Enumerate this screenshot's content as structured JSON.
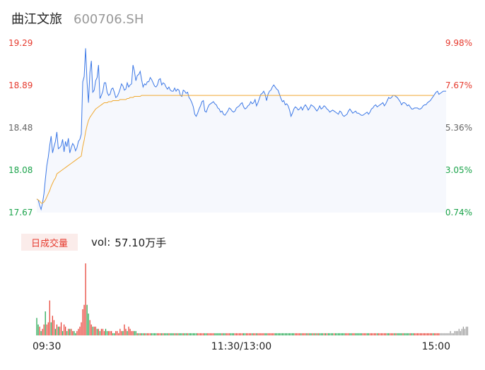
{
  "header": {
    "name": "曲江文旅",
    "code": "600706.SH"
  },
  "volume_panel": {
    "tag": "日成交量",
    "label": "vol:",
    "value": "57.10万手"
  },
  "colors": {
    "up": "#e63a2e",
    "down": "#1aa34a",
    "price_line": "#3c78e6",
    "avg_line": "#f0a930",
    "flat": "#999999"
  },
  "chart_data": {
    "type": "line",
    "y_left_ticks": [
      "19.29",
      "18.89",
      "18.48",
      "18.08",
      "17.67"
    ],
    "y_right_ticks": [
      "9.98%",
      "7.67%",
      "5.36%",
      "3.05%",
      "0.74%"
    ],
    "ylim": [
      17.67,
      19.29
    ],
    "x_ticks": [
      "09:30",
      "11:30/13:00",
      "15:00"
    ],
    "price": [
      17.8,
      17.79,
      17.74,
      17.7,
      17.76,
      17.85,
      17.99,
      18.12,
      18.2,
      18.31,
      18.4,
      18.24,
      18.3,
      18.35,
      18.44,
      18.28,
      18.29,
      18.31,
      18.37,
      18.25,
      18.35,
      18.3,
      18.38,
      18.24,
      18.29,
      18.33,
      18.31,
      18.26,
      18.29,
      18.35,
      18.37,
      18.42,
      18.92,
      18.97,
      19.24,
      18.92,
      18.72,
      19.01,
      19.12,
      18.82,
      18.84,
      18.93,
      18.96,
      19.08,
      18.76,
      18.79,
      18.83,
      18.91,
      18.91,
      18.82,
      18.79,
      18.8,
      18.85,
      18.86,
      18.82,
      18.77,
      18.78,
      18.81,
      18.85,
      18.9,
      18.88,
      18.84,
      18.85,
      18.91,
      18.87,
      18.89,
      18.9,
      19.08,
      19.02,
      18.93,
      18.98,
      18.99,
      19.02,
      18.94,
      18.87,
      18.9,
      18.89,
      18.92,
      18.92,
      18.96,
      18.94,
      18.91,
      18.88,
      18.87,
      18.89,
      18.94,
      18.95,
      18.89,
      18.91,
      18.9,
      18.87,
      18.85,
      18.87,
      18.84,
      18.83,
      18.83,
      18.86,
      18.83,
      18.85,
      18.84,
      18.79,
      18.78,
      18.84,
      18.83,
      18.81,
      18.82,
      18.77,
      18.75,
      18.72,
      18.68,
      18.61,
      18.59,
      18.62,
      18.66,
      18.69,
      18.73,
      18.74,
      18.64,
      18.63,
      18.67,
      18.7,
      18.71,
      18.72,
      18.73,
      18.71,
      18.7,
      18.67,
      18.66,
      18.63,
      18.64,
      18.61,
      18.6,
      18.62,
      18.64,
      18.67,
      18.66,
      18.64,
      18.63,
      18.64,
      18.67,
      18.68,
      18.69,
      18.71,
      18.72,
      18.68,
      18.66,
      18.67,
      18.69,
      18.7,
      18.73,
      18.71,
      18.72,
      18.75,
      18.69,
      18.72,
      18.76,
      18.8,
      18.81,
      18.83,
      18.8,
      18.74,
      18.8,
      18.83,
      18.84,
      18.87,
      18.89,
      18.87,
      18.85,
      18.84,
      18.8,
      18.76,
      18.73,
      18.74,
      18.7,
      18.71,
      18.69,
      18.65,
      18.59,
      18.62,
      18.66,
      18.68,
      18.67,
      18.65,
      18.66,
      18.68,
      18.65,
      18.68,
      18.7,
      18.68,
      18.65,
      18.67,
      18.7,
      18.69,
      18.68,
      18.66,
      18.64,
      18.66,
      18.69,
      18.66,
      18.67,
      18.69,
      18.68,
      18.66,
      18.65,
      18.63,
      18.64,
      18.65,
      18.64,
      18.63,
      18.62,
      18.61,
      18.64,
      18.63,
      18.6,
      18.59,
      18.6,
      18.61,
      18.64,
      18.66,
      18.64,
      18.62,
      18.63,
      18.64,
      18.62,
      18.62,
      18.61,
      18.6,
      18.6,
      18.61,
      18.62,
      18.63,
      18.61,
      18.63,
      18.66,
      18.67,
      18.69,
      18.7,
      18.68,
      18.69,
      18.7,
      18.71,
      18.72,
      18.69,
      18.71,
      18.74,
      18.77,
      18.76,
      18.77,
      18.79,
      18.79,
      18.78,
      18.77,
      18.75,
      18.73,
      18.7,
      18.72,
      18.72,
      18.71,
      18.69,
      18.7,
      18.68,
      18.66,
      18.66,
      18.67,
      18.67,
      18.67,
      18.66,
      18.66,
      18.67,
      18.69,
      18.7,
      18.7,
      18.72,
      18.73,
      18.74,
      18.76,
      18.78,
      18.8,
      18.82,
      18.83,
      18.8,
      18.81,
      18.82,
      18.83,
      18.83,
      18.83
    ],
    "avg": [
      17.8,
      17.79,
      17.78,
      17.76,
      17.76,
      17.77,
      17.79,
      17.82,
      17.85,
      17.88,
      17.92,
      17.95,
      17.98,
      18.0,
      18.04,
      18.05,
      18.06,
      18.07,
      18.08,
      18.09,
      18.1,
      18.11,
      18.12,
      18.13,
      18.14,
      18.15,
      18.16,
      18.17,
      18.18,
      18.19,
      18.2,
      18.21,
      18.3,
      18.36,
      18.44,
      18.5,
      18.55,
      18.58,
      18.6,
      18.62,
      18.64,
      18.66,
      18.67,
      18.68,
      18.69,
      18.7,
      18.71,
      18.72,
      18.72,
      18.72,
      18.73,
      18.73,
      18.73,
      18.74,
      18.74,
      18.74,
      18.74,
      18.74,
      18.75,
      18.75,
      18.75,
      18.75,
      18.75,
      18.76,
      18.76,
      18.77,
      18.77,
      18.77,
      18.78,
      18.78,
      18.78,
      18.78,
      18.78,
      18.79,
      18.79,
      18.79,
      18.79,
      18.79,
      18.79,
      18.79,
      18.79,
      18.79,
      18.79,
      18.79,
      18.79,
      18.79,
      18.79,
      18.79,
      18.79,
      18.79,
      18.79,
      18.79,
      18.79,
      18.79,
      18.79,
      18.79,
      18.79,
      18.79,
      18.79,
      18.79,
      18.79,
      18.79,
      18.79,
      18.79,
      18.79,
      18.79,
      18.79,
      18.79,
      18.79,
      18.79,
      18.79,
      18.79,
      18.79,
      18.79,
      18.79,
      18.79,
      18.79,
      18.79,
      18.79,
      18.79,
      18.79,
      18.79,
      18.79,
      18.79,
      18.79,
      18.79,
      18.79,
      18.79,
      18.79,
      18.79,
      18.79,
      18.79,
      18.79,
      18.79,
      18.79,
      18.79,
      18.79,
      18.79,
      18.79,
      18.79,
      18.79,
      18.79,
      18.79,
      18.79,
      18.79,
      18.79,
      18.79,
      18.79,
      18.79,
      18.79,
      18.79,
      18.79,
      18.79,
      18.79,
      18.79,
      18.79,
      18.79,
      18.79,
      18.79,
      18.79,
      18.79,
      18.79,
      18.79,
      18.79,
      18.79,
      18.79,
      18.79,
      18.79,
      18.79,
      18.79,
      18.79,
      18.79,
      18.79,
      18.79,
      18.79,
      18.79,
      18.79,
      18.79,
      18.79,
      18.79,
      18.79,
      18.79,
      18.79,
      18.79,
      18.79,
      18.79,
      18.79,
      18.79,
      18.79,
      18.79,
      18.79,
      18.79,
      18.79,
      18.79,
      18.79,
      18.79,
      18.79,
      18.79,
      18.79,
      18.79,
      18.79,
      18.79,
      18.79,
      18.79,
      18.79,
      18.79,
      18.79,
      18.79,
      18.79,
      18.79,
      18.79,
      18.79,
      18.79,
      18.79,
      18.79,
      18.79,
      18.79,
      18.79,
      18.79,
      18.79,
      18.79,
      18.79,
      18.79,
      18.79,
      18.79,
      18.79,
      18.79,
      18.79,
      18.79,
      18.79,
      18.79,
      18.79,
      18.79,
      18.79,
      18.79,
      18.79,
      18.79,
      18.79,
      18.79,
      18.79,
      18.79,
      18.79,
      18.79,
      18.79,
      18.79,
      18.79,
      18.79,
      18.79,
      18.79,
      18.79,
      18.79,
      18.79,
      18.79,
      18.79,
      18.79,
      18.79,
      18.79,
      18.79,
      18.79,
      18.79,
      18.79,
      18.79,
      18.79,
      18.79,
      18.79,
      18.79,
      18.79,
      18.79,
      18.79,
      18.79,
      18.79,
      18.79,
      18.79,
      18.79,
      18.79,
      18.79,
      18.79
    ],
    "volume": [
      8,
      5,
      4,
      2,
      3,
      5,
      11,
      5,
      6,
      16,
      6,
      9,
      7,
      3,
      5,
      4,
      4,
      6,
      2,
      5,
      4,
      2,
      3,
      3,
      3,
      2,
      2,
      1,
      2,
      3,
      4,
      6,
      12,
      14,
      33,
      14,
      10,
      7,
      5,
      4,
      4,
      4,
      3,
      3,
      2,
      3,
      3,
      2,
      3,
      2,
      2,
      2,
      2,
      1,
      1,
      2,
      2,
      1,
      3,
      2,
      2,
      5,
      3,
      2,
      4,
      3,
      2,
      2,
      2,
      2,
      1,
      1,
      1,
      1,
      1,
      1,
      1,
      1,
      1,
      1,
      1,
      1,
      1,
      1,
      1,
      1,
      1,
      1,
      1,
      1,
      1,
      1,
      1,
      1,
      1,
      1,
      1,
      1,
      1,
      1,
      1,
      1,
      1,
      1,
      1,
      1,
      1,
      1,
      1,
      1,
      1,
      1,
      1,
      1,
      1,
      1,
      1,
      1,
      1,
      1,
      1,
      1,
      1,
      1,
      1,
      1,
      1,
      1,
      1,
      1,
      1,
      1,
      1,
      1,
      1,
      1,
      1,
      1,
      1,
      1,
      1,
      1,
      1,
      1,
      1,
      1,
      1,
      1,
      1,
      1,
      1,
      1,
      1,
      1,
      1,
      1,
      1,
      1,
      1,
      1,
      1,
      1,
      1,
      1,
      1,
      1,
      1,
      1,
      1,
      1,
      1,
      1,
      1,
      1,
      1,
      1,
      1,
      1,
      1,
      1,
      1,
      1,
      1,
      1,
      1,
      1,
      1,
      1,
      1,
      1,
      1,
      1,
      1,
      1,
      1,
      1,
      1,
      1,
      1,
      1,
      1,
      1,
      1,
      1,
      1,
      1,
      1,
      1,
      1,
      1,
      1,
      1,
      1,
      1,
      1,
      1,
      1,
      1,
      1,
      1,
      1,
      1,
      1,
      1,
      1,
      1,
      1,
      1,
      1,
      1,
      1,
      1,
      1,
      1,
      1,
      1,
      1,
      1,
      1,
      1,
      1,
      1,
      1,
      1,
      1,
      1,
      1,
      1,
      1,
      1,
      1,
      1,
      1,
      1,
      1,
      1,
      1,
      1,
      1,
      1,
      1,
      1,
      1,
      1,
      1,
      1,
      1,
      1,
      1,
      1,
      1,
      1,
      1,
      1,
      1,
      1,
      1,
      1,
      1,
      1,
      1,
      1,
      1,
      1,
      1,
      1,
      1,
      1,
      2,
      1,
      1,
      2,
      2,
      2,
      3,
      2,
      3,
      4,
      3,
      4,
      4
    ],
    "volume_dir": [
      "d",
      "d",
      "u",
      "d",
      "u",
      "u",
      "d",
      "u",
      "u",
      "u",
      "d",
      "u",
      "u",
      "d",
      "u",
      "d",
      "u",
      "u",
      "d",
      "u",
      "u",
      "d",
      "u",
      "d",
      "u",
      "u",
      "d",
      "d",
      "u",
      "u",
      "u",
      "u",
      "u",
      "u",
      "u",
      "d",
      "d",
      "u",
      "u",
      "d",
      "u",
      "u",
      "d",
      "u",
      "d",
      "u",
      "u",
      "u",
      "d",
      "d",
      "u",
      "u",
      "u",
      "d",
      "d",
      "u",
      "u",
      "u",
      "u",
      "u",
      "d",
      "u",
      "u",
      "d",
      "u",
      "u",
      "u",
      "u",
      "d",
      "d",
      "u",
      "d",
      "u",
      "d",
      "d",
      "u",
      "d",
      "u",
      "u",
      "u",
      "d",
      "d",
      "d",
      "d",
      "u",
      "u",
      "u",
      "d",
      "u",
      "d",
      "d",
      "d",
      "u",
      "d",
      "d",
      "d",
      "u",
      "d",
      "u",
      "d",
      "d",
      "d",
      "u",
      "d",
      "d",
      "u",
      "d",
      "d",
      "d",
      "d",
      "d",
      "d",
      "u",
      "u",
      "u",
      "u",
      "u",
      "d",
      "d",
      "u",
      "u",
      "u",
      "u",
      "u",
      "d",
      "d",
      "d",
      "d",
      "d",
      "u",
      "d",
      "d",
      "u",
      "u",
      "u",
      "d",
      "d",
      "d",
      "u",
      "u",
      "u",
      "u",
      "u",
      "u",
      "d",
      "d",
      "u",
      "u",
      "u",
      "u",
      "d",
      "u",
      "u",
      "d",
      "u",
      "u",
      "u",
      "u",
      "u",
      "d",
      "d",
      "u",
      "u",
      "u",
      "u",
      "u",
      "d",
      "d",
      "d",
      "d",
      "d",
      "d",
      "d",
      "d",
      "d",
      "d",
      "d",
      "d",
      "d",
      "d",
      "u",
      "u",
      "u",
      "u",
      "d",
      "u",
      "u",
      "u",
      "d",
      "u",
      "d",
      "d",
      "u",
      "d",
      "u",
      "d",
      "u",
      "d",
      "d",
      "d",
      "u",
      "d",
      "u",
      "d",
      "d",
      "d",
      "d",
      "u",
      "d",
      "d",
      "d",
      "d",
      "d",
      "d",
      "d",
      "u",
      "u",
      "u",
      "d",
      "d",
      "u",
      "u",
      "d",
      "d",
      "d",
      "d",
      "d",
      "u",
      "u",
      "u",
      "d",
      "d",
      "u",
      "u",
      "u",
      "u",
      "u",
      "d",
      "u",
      "u",
      "u",
      "u",
      "u",
      "u",
      "d",
      "d",
      "u",
      "u",
      "u",
      "d",
      "u",
      "d",
      "d",
      "d",
      "d",
      "u",
      "d",
      "d",
      "d",
      "d",
      "u",
      "d",
      "d",
      "u",
      "u",
      "u",
      "u",
      "u",
      "u",
      "u",
      "u",
      "u",
      "u",
      "u",
      "u",
      "u",
      "d",
      "u",
      "u",
      "u",
      "u",
      "f"
    ]
  }
}
